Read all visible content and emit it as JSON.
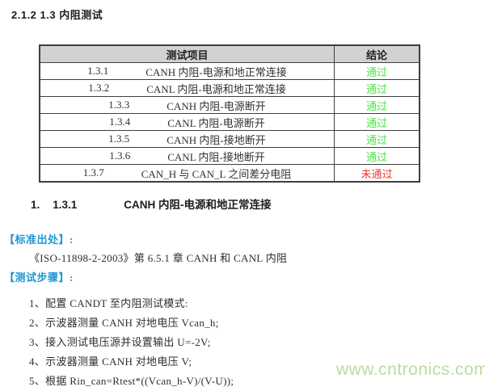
{
  "page": {
    "title": "2.1.2 1.3 内阻测试"
  },
  "table": {
    "headers": {
      "item": "测试项目",
      "result": "结论"
    },
    "rows": [
      {
        "num": "1.3.1",
        "desc": "CANH 内阻-电源和地正常连接",
        "result": "通过",
        "status": "pass"
      },
      {
        "num": "1.3.2",
        "desc": "CANL 内阻-电源和地正常连接",
        "result": "通过",
        "status": "pass"
      },
      {
        "num": "1.3.3",
        "desc": "CANH 内阻-电源断开",
        "result": "通过",
        "status": "pass"
      },
      {
        "num": "1.3.4",
        "desc": "CANL 内阻-电源断开",
        "result": "通过",
        "status": "pass"
      },
      {
        "num": "1.3.5",
        "desc": "CANH 内阻-接地断开",
        "result": "通过",
        "status": "pass"
      },
      {
        "num": "1.3.6",
        "desc": "CANL 内阻-接地断开",
        "result": "通过",
        "status": "pass"
      },
      {
        "num": "1.3.7",
        "desc": "CAN_H 与 CAN_L 之间差分电阻",
        "result": "未通过",
        "status": "fail"
      }
    ]
  },
  "section": {
    "list_no": "1.",
    "number": "1.3.1",
    "title": "CANH 内阻-电源和地正常连接"
  },
  "standard": {
    "label": "【标准出处】:",
    "text": "《ISO-11898-2-2003》第 6.5.1 章 CANH 和 CANL 内阻"
  },
  "steps": {
    "label": "【测试步骤】:",
    "items": [
      "1、配置 CANDT 至内阻测试模式:",
      "2、示波器测量 CANH 对地电压 Vcan_h;",
      "3、接入测试电压源并设置输出 U=-2V;",
      "4、示波器测量 CANH 对地电压 V;",
      "5、根据 Rin_can=Rtest*((Vcan_h-V)/(V-U));"
    ]
  },
  "watermark": "www.cntronics.com",
  "colors": {
    "pass_green": "#4ee44e",
    "fail_red": "#ef392c",
    "label_blue": "#2196d3",
    "table_header_bg": "#d2d2d2",
    "watermark_green": "#b9dca2"
  }
}
